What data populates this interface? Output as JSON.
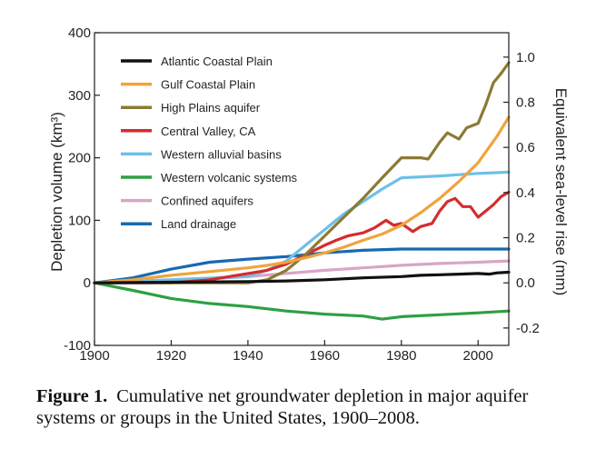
{
  "chart_data": {
    "type": "line",
    "title": "",
    "xlabel": "",
    "ylabel": "Depletion volume (km³)",
    "y2label": "Equivalent sea-level rise (mm)",
    "xlim": [
      1900,
      2008
    ],
    "ylim": [
      -100,
      400
    ],
    "y2lim": [
      -0.277,
      1.108
    ],
    "xticks": [
      1900,
      1920,
      1940,
      1960,
      1980,
      2000
    ],
    "yticks": [
      -100,
      0,
      100,
      200,
      300,
      400
    ],
    "y2ticks": [
      "-0.2",
      "0.0",
      "0.2",
      "0.4",
      "0.6",
      "0.8",
      "1.0"
    ],
    "y2tick_values": [
      -0.2,
      0.0,
      0.2,
      0.4,
      0.6,
      0.8,
      1.0
    ],
    "legend_position": "top-left",
    "series": [
      {
        "name": "Atlantic Coastal Plain",
        "color": "#111111",
        "x": [
          1900,
          1920,
          1940,
          1950,
          1960,
          1970,
          1980,
          1985,
          1990,
          1995,
          2000,
          2003,
          2005,
          2008
        ],
        "y": [
          0,
          1,
          2,
          3,
          5,
          8,
          10,
          12,
          13,
          14,
          15,
          14,
          16,
          17
        ]
      },
      {
        "name": "Gulf Coastal Plain",
        "color": "#f0a43b",
        "x": [
          1900,
          1910,
          1920,
          1930,
          1940,
          1945,
          1950,
          1955,
          1960,
          1965,
          1970,
          1975,
          1980,
          1985,
          1990,
          1995,
          2000,
          2005,
          2008
        ],
        "y": [
          0,
          5,
          12,
          18,
          24,
          28,
          33,
          40,
          48,
          57,
          68,
          78,
          92,
          112,
          135,
          162,
          192,
          235,
          265
        ]
      },
      {
        "name": "High Plains aquifer",
        "color": "#8c7a32",
        "x": [
          1900,
          1940,
          1945,
          1950,
          1955,
          1960,
          1965,
          1970,
          1975,
          1980,
          1985,
          1987,
          1990,
          1992,
          1995,
          1997,
          2000,
          2002,
          2004,
          2006,
          2008
        ],
        "y": [
          0,
          0,
          5,
          20,
          45,
          75,
          105,
          135,
          168,
          200,
          200,
          198,
          225,
          240,
          230,
          248,
          255,
          285,
          320,
          335,
          352
        ]
      },
      {
        "name": "Central Valley, CA",
        "color": "#d62b2d",
        "x": [
          1900,
          1920,
          1930,
          1940,
          1945,
          1950,
          1955,
          1960,
          1963,
          1966,
          1970,
          1973,
          1976,
          1978,
          1980,
          1983,
          1985,
          1988,
          1990,
          1992,
          1994,
          1996,
          1998,
          2000,
          2002,
          2004,
          2006,
          2008
        ],
        "y": [
          0,
          0,
          5,
          15,
          20,
          30,
          45,
          60,
          68,
          75,
          80,
          88,
          100,
          92,
          95,
          82,
          90,
          95,
          115,
          130,
          135,
          122,
          122,
          105,
          115,
          125,
          138,
          145
        ]
      },
      {
        "name": "Western alluvial basins",
        "color": "#6dc0e8",
        "x": [
          1900,
          1940,
          1945,
          1950,
          1955,
          1960,
          1965,
          1970,
          1975,
          1980,
          1990,
          2000,
          2008
        ],
        "y": [
          0,
          10,
          20,
          35,
          60,
          85,
          110,
          130,
          150,
          168,
          171,
          175,
          177
        ]
      },
      {
        "name": "Western volcanic systems",
        "color": "#2ea043",
        "x": [
          1900,
          1910,
          1920,
          1930,
          1940,
          1950,
          1960,
          1970,
          1975,
          1980,
          1990,
          2000,
          2008
        ],
        "y": [
          0,
          -12,
          -25,
          -33,
          -38,
          -45,
          -50,
          -53,
          -58,
          -54,
          -51,
          -48,
          -45
        ]
      },
      {
        "name": "Confined aquifers",
        "color": "#d8a6c4",
        "x": [
          1900,
          1920,
          1940,
          1950,
          1960,
          1970,
          1980,
          1990,
          2000,
          2008
        ],
        "y": [
          0,
          3,
          10,
          15,
          20,
          24,
          28,
          31,
          33,
          35
        ]
      },
      {
        "name": "Land drainage",
        "color": "#1769b0",
        "x": [
          1900,
          1910,
          1920,
          1930,
          1940,
          1950,
          1960,
          1970,
          1980,
          1990,
          2000,
          2008
        ],
        "y": [
          0,
          8,
          22,
          33,
          38,
          42,
          48,
          52,
          54,
          54,
          54,
          54
        ]
      }
    ]
  },
  "caption": {
    "label": "Figure 1.",
    "text": "Cumulative net groundwater depletion in major aquifer systems or groups in the United States, 1900–2008."
  }
}
